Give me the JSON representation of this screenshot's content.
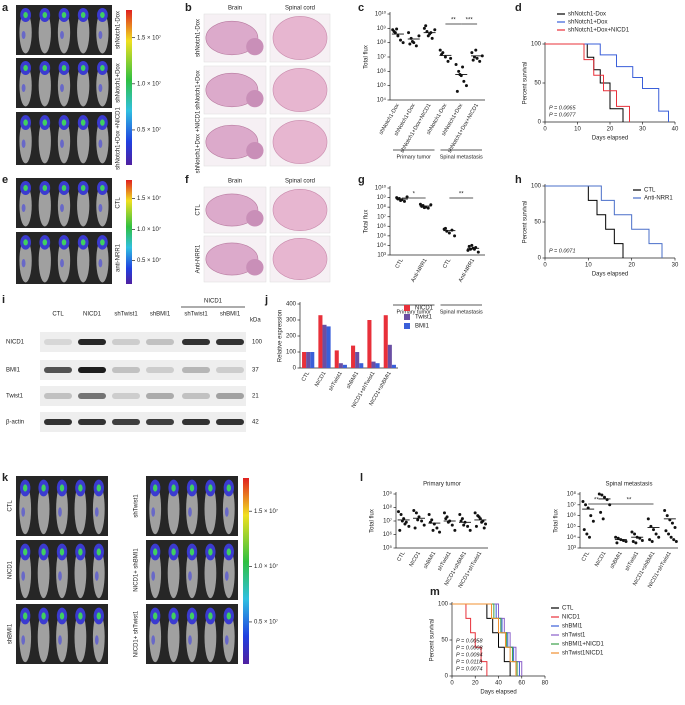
{
  "chart_data": [
    {
      "type": "dot",
      "panel_label": "c",
      "y_label": "Total flux",
      "log": true,
      "categories": [
        "shNotch1-Dox",
        "shNotch1+Dox",
        "shNotch1+Dox+NICD1",
        "shNotch1-Dox",
        "shNotch1+Dox",
        "shNotch1+Dox+NICD1"
      ],
      "groups": [
        "Primary tumor",
        "Spinal metastasis"
      ],
      "points": [
        [
          800000000.0,
          500000000.0,
          300000000.0,
          150000000.0,
          100000000.0,
          600000000.0,
          900000000.0
        ],
        [
          500000000.0,
          200000000.0,
          100000000.0,
          60000000.0,
          300000000.0,
          80000000.0,
          120000000.0
        ],
        [
          1000000000.0,
          600000000.0,
          400000000.0,
          200000000.0,
          800000000.0,
          1500000000.0,
          300000000.0,
          500000000.0
        ],
        [
          30000000.0,
          20000000.0,
          10000000.0,
          5000000.0,
          8000000.0,
          15000000.0
        ],
        [
          3000000.0,
          1000000.0,
          500000.0,
          200000.0,
          100000.0,
          40000.0,
          600000.0,
          2000000.0
        ],
        [
          20000000.0,
          10000000.0,
          8000000.0,
          5000000.0,
          12000000.0,
          6000000.0,
          30000000.0
        ]
      ],
      "means": [
        400000000.0,
        180000000.0,
        500000000.0,
        13000000.0,
        600000.0,
        12000000.0
      ],
      "ylim": [
        10000,
        10000000000.0
      ],
      "yticks": [
        {
          "value": 10000,
          "label": "10⁴"
        },
        {
          "value": 100000,
          "label": "10⁵"
        },
        {
          "value": 1000000,
          "label": "10⁶"
        },
        {
          "value": 10000000.0,
          "label": "10⁷"
        },
        {
          "value": 100000000.0,
          "label": "10⁸"
        },
        {
          "value": 1000000000.0,
          "label": "10⁹"
        },
        {
          "value": 10000000000.0,
          "label": "10¹⁰"
        }
      ],
      "annotations": [
        "**",
        "***"
      ]
    },
    {
      "type": "survival",
      "panel_label": "d",
      "y_label": "Percent survival",
      "x_label": "Days elapsed",
      "legend": "top",
      "series": [
        {
          "name": "shNotch1-Dox",
          "color": "#000000",
          "x": [
            0,
            13,
            13,
            15,
            15,
            17,
            17,
            20,
            20,
            24,
            24
          ],
          "values": [
            100,
            100,
            83,
            83,
            67,
            67,
            50,
            50,
            17,
            17,
            0
          ]
        },
        {
          "name": "shNotch1+Dox",
          "color": "#3a5fd9",
          "x": [
            0,
            17,
            17,
            22,
            22,
            27,
            27,
            30,
            30,
            35,
            35,
            38,
            38
          ],
          "values": [
            100,
            100,
            86,
            86,
            71,
            71,
            57,
            57,
            43,
            43,
            14,
            14,
            0
          ]
        },
        {
          "name": "shNotch1+Dox+NICD1",
          "color": "#e8303a",
          "x": [
            0,
            12,
            12,
            15,
            15,
            18,
            18,
            22,
            22,
            26,
            26
          ],
          "values": [
            100,
            100,
            80,
            80,
            60,
            60,
            40,
            40,
            20,
            20,
            0
          ]
        }
      ],
      "xlim": [
        0,
        40
      ],
      "xticks": [
        0,
        10,
        20,
        30,
        40
      ],
      "ylim": [
        0,
        100
      ],
      "yticks": [
        0,
        50,
        100
      ],
      "annotations": [
        {
          "text": "P = 0.0065",
          "color": "#000000"
        },
        {
          "text": "P = 0.0077",
          "color": "#e8303a"
        }
      ]
    },
    {
      "type": "dot",
      "panel_label": "g",
      "y_label": "Total flux",
      "log": true,
      "categories": [
        "CTL",
        "Anti-NRR1",
        "CTL",
        "Anti-NRR1"
      ],
      "groups": [
        "Primary tumor",
        "Spinal metastasis"
      ],
      "points": [
        [
          1000000000.0,
          800000000.0,
          600000000.0,
          400000000.0,
          1200000000.0,
          700000000.0,
          500000000.0
        ],
        [
          200000000.0,
          150000000.0,
          100000000.0,
          80000000.0,
          180000000.0,
          120000000.0,
          90000000.0
        ],
        [
          500000.0,
          300000.0,
          200000.0,
          400000.0,
          100000.0,
          600000.0
        ],
        [
          3000,
          4000,
          5000,
          6000,
          2000,
          8000,
          10000,
          4000
        ]
      ],
      "means": [
        700000000.0,
        130000000.0,
        350000.0,
        5000
      ],
      "ylim": [
        1000,
        10000000000.0
      ],
      "yticks": [
        {
          "value": 1000,
          "label": "10³"
        },
        {
          "value": 10000,
          "label": "10⁴"
        },
        {
          "value": 100000,
          "label": "10⁵"
        },
        {
          "value": 1000000,
          "label": "10⁶"
        },
        {
          "value": 10000000.0,
          "label": "10⁷"
        },
        {
          "value": 100000000.0,
          "label": "10⁸"
        },
        {
          "value": 1000000000.0,
          "label": "10⁹"
        },
        {
          "value": 10000000000.0,
          "label": "10¹⁰"
        }
      ],
      "annotations": [
        "*",
        "**"
      ]
    },
    {
      "type": "survival",
      "panel_label": "h",
      "y_label": "Percent survival",
      "x_label": "Days elapsed",
      "legend": "upper right",
      "series": [
        {
          "name": "CTL",
          "color": "#000000",
          "x": [
            0,
            10,
            10,
            12,
            12,
            14,
            14,
            16,
            16,
            18,
            18
          ],
          "values": [
            100,
            100,
            80,
            80,
            60,
            60,
            40,
            40,
            20,
            20,
            0
          ]
        },
        {
          "name": "Anti-NRR1",
          "color": "#4a6fc9",
          "x": [
            0,
            13,
            13,
            16,
            16,
            20,
            20,
            24,
            24,
            27,
            27
          ],
          "values": [
            100,
            100,
            80,
            80,
            60,
            60,
            40,
            40,
            20,
            20,
            0
          ]
        }
      ],
      "xlim": [
        0,
        30
      ],
      "xticks": [
        0,
        10,
        20,
        30
      ],
      "ylim": [
        0,
        100
      ],
      "yticks": [
        0,
        50,
        100
      ],
      "annotations": [
        {
          "text": "P = 0.0071",
          "color": "#000000"
        }
      ]
    },
    {
      "type": "bar",
      "panel_label": "j",
      "y_label": "Relative expression",
      "legend": "right",
      "categories": [
        "CTL",
        "NICD1",
        "shTwist1",
        "shBMI1",
        "NICD1+shTwist1",
        "NICD1+shBMI1"
      ],
      "series": [
        {
          "name": "NICD1",
          "color": "#e8303a",
          "values": [
            100,
            330,
            110,
            140,
            300,
            330
          ]
        },
        {
          "name": "Twist1",
          "color": "#6a4fa3",
          "values": [
            100,
            270,
            30,
            100,
            40,
            145
          ]
        },
        {
          "name": "BMI1",
          "color": "#3a5fd9",
          "values": [
            100,
            260,
            20,
            30,
            30,
            20
          ]
        }
      ],
      "ylim": [
        0,
        400
      ],
      "yticks": [
        0,
        100,
        200,
        300,
        400
      ]
    },
    {
      "type": "dot",
      "panel_label": "l",
      "title": "Primary tumor",
      "y_label": "Total flux",
      "log": true,
      "categories": [
        "CTL",
        "NICD1",
        "shBMI1",
        "shTwist1",
        "NICD1+shBMI1",
        "NICD1+shTwist1"
      ],
      "points": [
        [
          50000000.0,
          30000000.0,
          15000000.0,
          8000000.0,
          4000000.0,
          2000000.0,
          10000000.0,
          6000000.0
        ],
        [
          60000000.0,
          40000000.0,
          20000000.0,
          10000000.0,
          5000000.0,
          3000000.0,
          12000000.0
        ],
        [
          30000000.0,
          12000000.0,
          6000000.0,
          3000000.0,
          1500000.0,
          8000000.0,
          2000000.0
        ],
        [
          40000000.0,
          20000000.0,
          10000000.0,
          5000000.0,
          2000000.0,
          15000000.0,
          8000000.0
        ],
        [
          30000000.0,
          15000000.0,
          8000000.0,
          4000000.0,
          2000000.0,
          10000000.0,
          5000000.0
        ],
        [
          40000000.0,
          25000000.0,
          15000000.0,
          10000000.0,
          6000000.0,
          4000000.0,
          20000000.0,
          8000000.0,
          3000000.0
        ]
      ],
      "means": [
        12000000.0,
        16000000.0,
        7000000.0,
        10000000.0,
        8000000.0,
        12000000.0
      ],
      "ylim": [
        100000,
        1000000000.0
      ],
      "yticks": [
        {
          "value": 100000,
          "label": "10⁵"
        },
        {
          "value": 1000000,
          "label": "10⁶"
        },
        {
          "value": 10000000.0,
          "label": "10⁷"
        },
        {
          "value": 100000000.0,
          "label": "10⁸"
        },
        {
          "value": 1000000000.0,
          "label": "10⁹"
        }
      ]
    },
    {
      "type": "dot",
      "panel_label": "",
      "title": "Spinal metastasis",
      "y_label": "Total flux",
      "log": true,
      "categories": [
        "CTL",
        "NICD1",
        "shBMI1",
        "shTwist1",
        "NICD1+shBMI1",
        "NICD1+shTwist1"
      ],
      "points": [
        [
          20000000.0,
          10000000.0,
          5000000.0,
          1000000.0,
          300000,
          50000,
          20000,
          10000
        ],
        [
          100000000.0,
          80000000.0,
          50000000.0,
          30000000.0,
          10000000.0,
          2000000.0,
          500000
        ],
        [
          10000,
          8000,
          6000,
          5000,
          4000,
          3000
        ],
        [
          30000,
          20000,
          10000,
          8000,
          5000,
          4000,
          3000
        ],
        [
          500000,
          100000,
          50000,
          20000,
          10000,
          6000,
          4000
        ],
        [
          3000000.0,
          1000000.0,
          400000,
          200000,
          80000,
          40000,
          20000,
          10000,
          6000,
          4000
        ]
      ],
      "means": [
        4000000.0,
        35000000.0,
        6000,
        10000,
        80000,
        500000
      ],
      "ylim": [
        1000,
        100000000.0
      ],
      "yticks": [
        {
          "value": 1000,
          "label": "10³"
        },
        {
          "value": 10000,
          "label": "10⁴"
        },
        {
          "value": 100000,
          "label": "10⁵"
        },
        {
          "value": 1000000,
          "label": "10⁶"
        },
        {
          "value": 10000000.0,
          "label": "10⁷"
        },
        {
          "value": 100000000.0,
          "label": "10⁸"
        }
      ],
      "annotations": [
        "**",
        "**"
      ]
    },
    {
      "type": "survival",
      "panel_label": "m",
      "y_label": "Percent survival",
      "x_label": "Days elapsed",
      "legend": "right",
      "series": [
        {
          "name": "CTL",
          "color": "#000000",
          "x": [
            0,
            30,
            30,
            35,
            35,
            40,
            40,
            45,
            45,
            50,
            50
          ],
          "values": [
            100,
            100,
            80,
            80,
            60,
            60,
            40,
            40,
            20,
            20,
            0
          ]
        },
        {
          "name": "NICD1",
          "color": "#e8303a",
          "x": [
            0,
            12,
            12,
            16,
            16,
            20,
            20,
            25,
            25,
            30,
            30
          ],
          "values": [
            100,
            100,
            80,
            80,
            60,
            60,
            40,
            40,
            20,
            20,
            0
          ]
        },
        {
          "name": "shBMI1",
          "color": "#3a5fd9",
          "x": [
            0,
            38,
            38,
            43,
            43,
            48,
            48,
            53,
            53,
            58,
            58
          ],
          "values": [
            100,
            100,
            80,
            80,
            60,
            60,
            40,
            40,
            20,
            20,
            0
          ]
        },
        {
          "name": "shTwist1",
          "color": "#8a5fc9",
          "x": [
            0,
            40,
            40,
            45,
            45,
            50,
            50,
            55,
            55,
            60,
            60
          ],
          "values": [
            100,
            100,
            80,
            80,
            60,
            60,
            40,
            40,
            20,
            20,
            0
          ]
        },
        {
          "name": "shBMI1+NICD1",
          "color": "#3aa048",
          "x": [
            0,
            36,
            36,
            42,
            42,
            47,
            47,
            52,
            52,
            56,
            56
          ],
          "values": [
            100,
            100,
            80,
            80,
            60,
            60,
            40,
            40,
            20,
            20,
            0
          ]
        },
        {
          "name": "shTwist1NICD1",
          "color": "#f09030",
          "x": [
            0,
            34,
            34,
            40,
            40,
            46,
            46,
            50,
            50,
            55,
            55
          ],
          "values": [
            100,
            100,
            80,
            80,
            60,
            60,
            40,
            40,
            20,
            20,
            0
          ]
        }
      ],
      "xlim": [
        0,
        80
      ],
      "xticks": [
        0,
        20,
        40,
        60,
        80
      ],
      "ylim": [
        0,
        100
      ],
      "yticks": [
        0,
        50,
        100
      ],
      "annotations": [
        {
          "text": "P = 0.0058",
          "color": "#e8303a"
        },
        {
          "text": "P = 0.0008",
          "color": "#3a5fd9"
        },
        {
          "text": "P = 0.0094",
          "color": "#8a5fc9"
        },
        {
          "text": "P = 0.0118",
          "color": "#3aa048"
        },
        {
          "text": "P = 0.0074",
          "color": "#f09030"
        }
      ]
    }
  ],
  "image_panels": [
    {
      "panel_label": "a",
      "row_labels": [
        "shNotch1-Dox",
        "shNotch1+Dox",
        "shNotch1+Dox +NICD1"
      ],
      "colorbar_lim": [
        1200000,
        18000000.0
      ],
      "colorbar_ticks": [
        {
          "value": 15000000.0,
          "label": "1.5 × 10⁷"
        },
        {
          "value": 10000000.0,
          "label": "1.0 × 10⁷"
        },
        {
          "value": 5000000,
          "label": "0.5 × 10⁷"
        }
      ]
    },
    {
      "panel_label": "b",
      "column_labels": [
        "Brain",
        "Spinal cord"
      ],
      "row_labels": [
        "shNotch1-Dox",
        "shNotch1+Dox",
        "shNotch1+Dox +NICD1"
      ]
    },
    {
      "panel_label": "e",
      "row_labels": [
        "CTL",
        "anti-NRR1"
      ],
      "colorbar_lim": [
        1200000,
        18000000.0
      ],
      "colorbar_ticks": [
        {
          "value": 15000000.0,
          "label": "1.5 × 10⁷"
        },
        {
          "value": 10000000.0,
          "label": "1.0 × 10⁷"
        },
        {
          "value": 5000000,
          "label": "0.5 × 10⁷"
        }
      ]
    },
    {
      "panel_label": "f",
      "column_labels": [
        "Brain",
        "Spinal cord"
      ],
      "row_labels": [
        "CTL",
        "Anti-NRR1"
      ]
    },
    {
      "panel_label": "k",
      "row_labels": [
        "CTL",
        "NICD1",
        "shBMI1"
      ],
      "right_row_labels": [
        "shTwist1",
        "NICD1+ shBMI1",
        "NICD1+ shTwist1"
      ],
      "colorbar_lim": [
        1200000,
        18000000.0
      ],
      "colorbar_ticks": [
        {
          "value": 15000000.0,
          "label": "1.5 × 10⁷"
        },
        {
          "value": 10000000.0,
          "label": "1.0 × 10⁷"
        },
        {
          "value": 5000000,
          "label": "0.5 × 10⁷"
        }
      ]
    }
  ],
  "blot": {
    "panel_label": "i",
    "group_label": "NICD1",
    "lanes": [
      "CTL",
      "NICD1",
      "shTwist1",
      "shBMI1",
      "shTwist1",
      "shBMI1"
    ],
    "proteins": [
      "NICD1",
      "BMI1",
      "Twist1",
      "β-actin"
    ],
    "kda_label": "kDa",
    "kda": [
      100,
      37,
      21,
      42
    ]
  }
}
